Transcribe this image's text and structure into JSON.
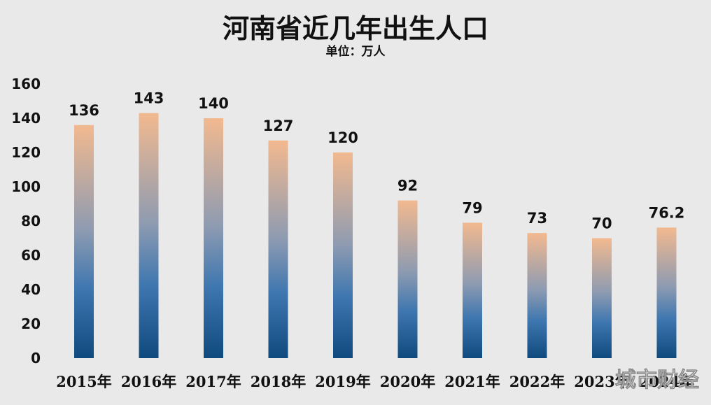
{
  "chart_data": {
    "type": "bar",
    "title": "河南省近几年出生人口",
    "subtitle": "单位：万人",
    "categories": [
      "2015年",
      "2016年",
      "2017年",
      "2018年",
      "2019年",
      "2020年",
      "2021年",
      "2022年",
      "2023年",
      "2024年"
    ],
    "values": [
      136,
      143,
      140,
      127,
      120,
      92,
      79,
      73,
      70,
      76.2
    ],
    "value_labels": [
      "136",
      "143",
      "140",
      "127",
      "120",
      "92",
      "79",
      "73",
      "70",
      "76.2"
    ],
    "ylim": [
      0,
      160
    ],
    "yticks": [
      0,
      20,
      40,
      60,
      80,
      100,
      120,
      140,
      160
    ],
    "grid": false,
    "legend": "none",
    "bar_gradient": {
      "top": "#f2b98f",
      "bottom": "#0f4a7e"
    }
  },
  "watermark": "城市财经"
}
